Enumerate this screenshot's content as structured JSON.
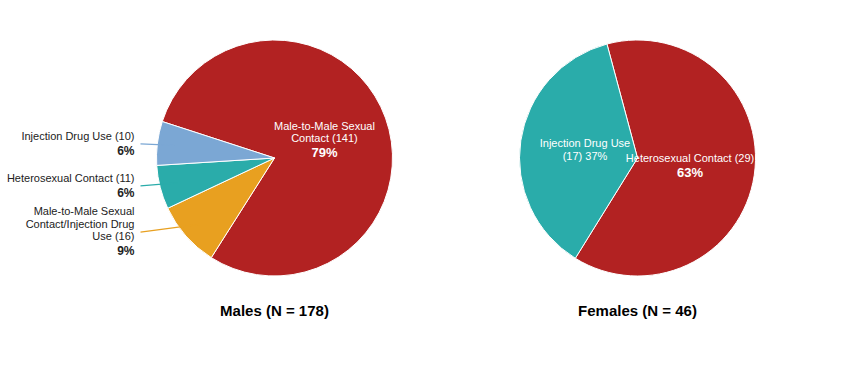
{
  "chart_data": [
    {
      "type": "pie",
      "title": "Males (N = 178)",
      "categories": [
        "Male-to-Male Sexual\nContact  (141)",
        "Male-to-Male Sexual\nContact/Injection Drug\nUse (16)",
        "Heterosexual Contact (11)",
        "Injection Drug Use (10)"
      ],
      "values": [
        79,
        9,
        6,
        6
      ],
      "value_labels": [
        "79%",
        "9%",
        "6%",
        "6%"
      ],
      "colors": [
        "#b22222",
        "#e8a020",
        "#2aacaa",
        "#7ba7d4"
      ],
      "data_labels": true
    },
    {
      "type": "pie",
      "title": "Females (N = 46)",
      "categories": [
        "Heterosexual Contact (29)",
        "Injection Drug Use\n(17) 37%"
      ],
      "values": [
        63,
        37
      ],
      "value_labels": [
        "63%",
        null
      ],
      "colors": [
        "#b22222",
        "#2aacaa"
      ],
      "data_labels": true
    }
  ]
}
